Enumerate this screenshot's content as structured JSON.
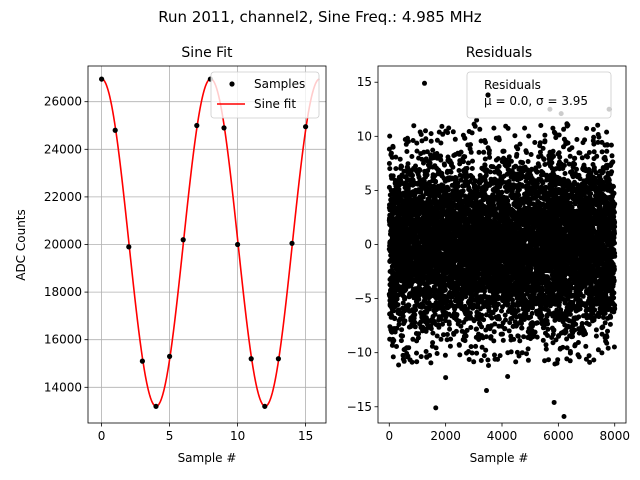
{
  "figure": {
    "suptitle": "Run 2011, channel2, Sine Freq.: 4.985 MHz"
  },
  "chart_data": [
    {
      "type": "line",
      "title": "Sine Fit",
      "xlabel": "Sample #",
      "ylabel": "ADC Counts",
      "xlim": [
        -1,
        16.5
      ],
      "ylim": [
        12500,
        27500
      ],
      "xticks": [
        0,
        5,
        10,
        15
      ],
      "xtick_labels": [
        "0",
        "5",
        "10",
        "15"
      ],
      "yticks": [
        14000,
        16000,
        18000,
        20000,
        22000,
        24000,
        26000
      ],
      "ytick_labels": [
        "14000",
        "16000",
        "18000",
        "20000",
        "22000",
        "24000",
        "26000"
      ],
      "grid": true,
      "legend_placement": "upper right",
      "series": [
        {
          "name": "Samples",
          "kind": "scatter",
          "color": "#000000",
          "x": [
            0,
            1,
            2,
            3,
            4,
            5,
            6,
            7,
            8,
            9,
            10,
            11,
            12,
            13,
            14,
            15
          ],
          "y": [
            26950,
            24800,
            19900,
            15100,
            13200,
            15300,
            20200,
            25000,
            26950,
            24900,
            20000,
            15200,
            13200,
            15200,
            20050,
            24950
          ]
        },
        {
          "name": "Sine fit",
          "kind": "line",
          "color": "#ff0000",
          "model": {
            "offset": 20080,
            "amplitude": 6880,
            "period": 8.02,
            "phase_x": 0.0
          },
          "x_range": [
            0,
            16
          ]
        }
      ]
    },
    {
      "type": "scatter",
      "title": "Residuals",
      "xlabel": "Sample #",
      "ylabel": "",
      "xlim": [
        -400,
        8400
      ],
      "ylim": [
        -16.5,
        16.5
      ],
      "xticks": [
        0,
        2000,
        4000,
        6000,
        8000
      ],
      "xtick_labels": [
        "0",
        "2000",
        "4000",
        "6000",
        "8000"
      ],
      "yticks": [
        -15,
        -10,
        -5,
        0,
        5,
        10,
        15
      ],
      "ytick_labels": [
        "−15",
        "−10",
        "−5",
        "0",
        "5",
        "10",
        "15"
      ],
      "grid": false,
      "legend_placement": "upper right",
      "legend_lines": [
        "Residuals",
        "μ = 0.0, σ = 3.95"
      ],
      "series": [
        {
          "name": "Residuals",
          "color": "#000000",
          "distribution": {
            "mean": 0.0,
            "std": 3.95,
            "n_points": 8000,
            "x_range": [
              0,
              8000
            ]
          },
          "x": [
            1250,
            1650,
            3450,
            5850,
            6200,
            5700,
            2000,
            7800,
            6100,
            4200,
            3100,
            500
          ],
          "y": [
            14.9,
            -15.1,
            -13.5,
            -14.6,
            -15.9,
            12.5,
            -12.3,
            12.5,
            12.1,
            -12.2,
            11.5,
            -10.6
          ]
        }
      ]
    }
  ]
}
